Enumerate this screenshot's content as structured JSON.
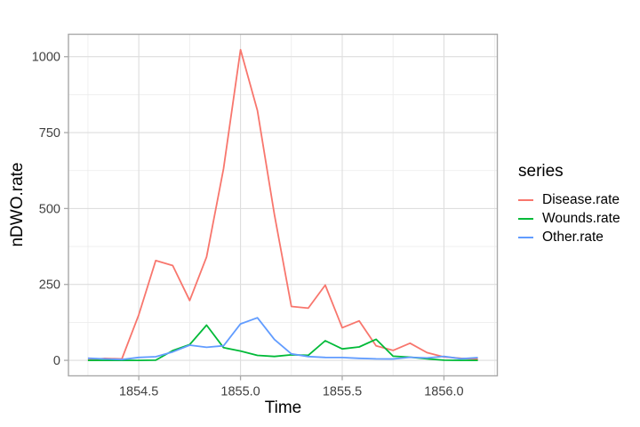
{
  "figure": {
    "background": "#FFFFFF",
    "panel": {
      "background": "#FFFFFF",
      "border_color": "#A9A9A9",
      "grid_major_color": "#DEDEDE",
      "grid_minor_color": "#EDEDED",
      "tick_color": "#A9A9A9",
      "tick_label_color": "#404040"
    }
  },
  "axes": {
    "x": {
      "title": "Time",
      "tick_values": [
        1854.5,
        1855.0,
        1855.5,
        1856.0
      ],
      "tick_labels": [
        "1854.5",
        "1855.0",
        "1855.5",
        "1856.0"
      ],
      "minor_values": [
        1854.25,
        1854.75,
        1855.25,
        1855.75,
        1856.25
      ],
      "range": [
        1854.1542,
        1856.2625
      ]
    },
    "y": {
      "title": "nDWO.rate",
      "tick_values": [
        0,
        250,
        500,
        750,
        1000
      ],
      "tick_labels": [
        "0",
        "250",
        "500",
        "750",
        "1000"
      ],
      "minor_values": [
        125,
        375,
        625,
        875
      ],
      "range": [
        -51.1,
        1073.9
      ]
    }
  },
  "legend": {
    "title": "series",
    "entries": [
      {
        "label": "Disease.rate",
        "color": "#F8766D"
      },
      {
        "label": "Wounds.rate",
        "color": "#00BA38"
      },
      {
        "label": "Other.rate",
        "color": "#619CFF"
      }
    ]
  },
  "chart_data": {
    "type": "line",
    "title": "",
    "xlabel": "Time",
    "ylabel": "nDWO.rate",
    "xlim": [
      1854.1542,
      1856.2625
    ],
    "ylim": [
      -51.1,
      1073.9
    ],
    "grid": true,
    "legend_position": "right",
    "x": [
      1854.25,
      1854.3333,
      1854.4167,
      1854.5,
      1854.5833,
      1854.6667,
      1854.75,
      1854.8333,
      1854.9167,
      1855.0,
      1855.0833,
      1855.1667,
      1855.25,
      1855.3333,
      1855.4167,
      1855.5,
      1855.5833,
      1855.6667,
      1855.75,
      1855.8333,
      1855.9167,
      1856.0,
      1856.0833,
      1856.1667
    ],
    "series": [
      {
        "name": "Disease.rate",
        "color": "#F8766D",
        "values": [
          1.4,
          6.2,
          4.7,
          150.0,
          328.5,
          312.2,
          197.0,
          340.6,
          631.5,
          1022.8,
          822.8,
          480.3,
          177.5,
          171.8,
          247.6,
          107.5,
          129.9,
          47.5,
          32.8,
          56.4,
          25.3,
          11.4,
          6.6,
          3.9
        ]
      },
      {
        "name": "Wounds.rate",
        "color": "#00BA38",
        "values": [
          0.0,
          0.0,
          0.0,
          0.0,
          0.4,
          32.1,
          51.7,
          115.8,
          41.7,
          30.7,
          16.3,
          12.8,
          17.9,
          16.6,
          64.5,
          37.7,
          44.1,
          69.4,
          13.6,
          10.5,
          5.0,
          0.5,
          0.0,
          0.0
        ]
      },
      {
        "name": "Other.rate",
        "color": "#619CFF",
        "values": [
          7.0,
          4.6,
          2.5,
          9.6,
          11.9,
          27.7,
          50.1,
          42.8,
          48.0,
          120.0,
          140.1,
          68.6,
          21.2,
          12.5,
          9.6,
          9.3,
          6.7,
          5.0,
          4.6,
          10.1,
          7.8,
          13.0,
          5.2,
          9.1
        ]
      }
    ]
  }
}
